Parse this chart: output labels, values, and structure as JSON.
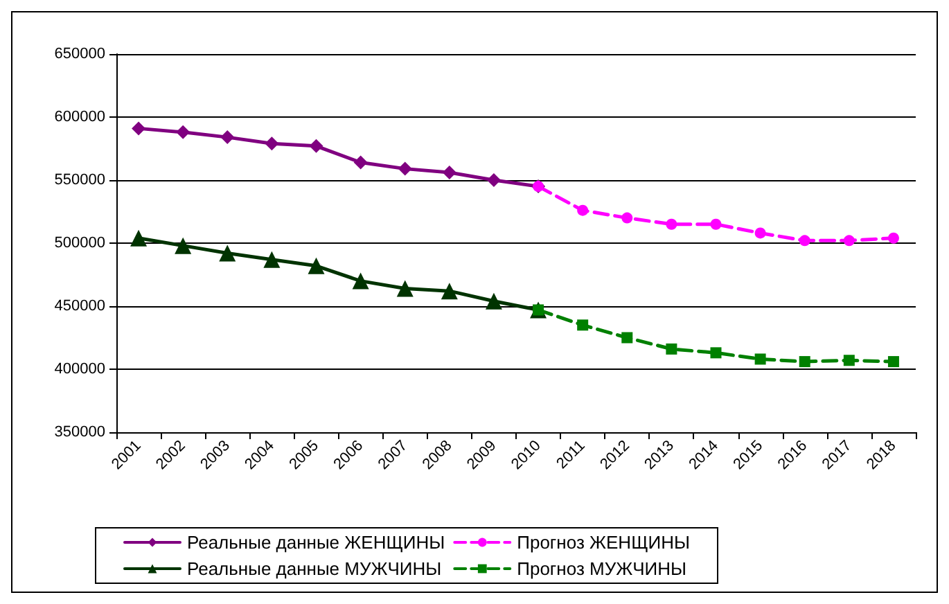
{
  "chart_data": {
    "type": "line",
    "categories": [
      "2001",
      "2002",
      "2003",
      "2004",
      "2005",
      "2006",
      "2007",
      "2008",
      "2009",
      "2010",
      "2011",
      "2012",
      "2013",
      "2014",
      "2015",
      "2016",
      "2017",
      "2018"
    ],
    "series": [
      {
        "name": "Реальные данные ЖЕНЩИНЫ",
        "color": "#800080",
        "marker": "diamond",
        "line_style": "solid",
        "values": [
          591000,
          588000,
          584000,
          579000,
          577000,
          564000,
          559000,
          556000,
          550000,
          545000,
          null,
          null,
          null,
          null,
          null,
          null,
          null,
          null
        ]
      },
      {
        "name": "Прогноз ЖЕНЩИНЫ",
        "color": "#ff00ff",
        "marker": "circle",
        "line_style": "dashed",
        "values": [
          null,
          null,
          null,
          null,
          null,
          null,
          null,
          null,
          null,
          545000,
          526000,
          520000,
          515000,
          515000,
          508000,
          502000,
          502000,
          504000
        ]
      },
      {
        "name": "Реальные данные МУЖЧИНЫ",
        "color": "#003300",
        "marker": "triangle",
        "line_style": "solid",
        "values": [
          504000,
          498000,
          492000,
          487000,
          482000,
          470000,
          464000,
          462000,
          454000,
          447000,
          null,
          null,
          null,
          null,
          null,
          null,
          null,
          null
        ]
      },
      {
        "name": "Прогноз МУЖЧИНЫ",
        "color": "#008000",
        "marker": "square",
        "line_style": "dashed",
        "values": [
          null,
          null,
          null,
          null,
          null,
          null,
          null,
          null,
          null,
          447000,
          435000,
          425000,
          416000,
          413000,
          408000,
          406000,
          407000,
          406000
        ]
      }
    ],
    "ylim": [
      350000,
      650000
    ],
    "yticks": [
      350000,
      400000,
      450000,
      500000,
      550000,
      600000,
      650000
    ],
    "grid": "y",
    "legend": "bottom"
  }
}
